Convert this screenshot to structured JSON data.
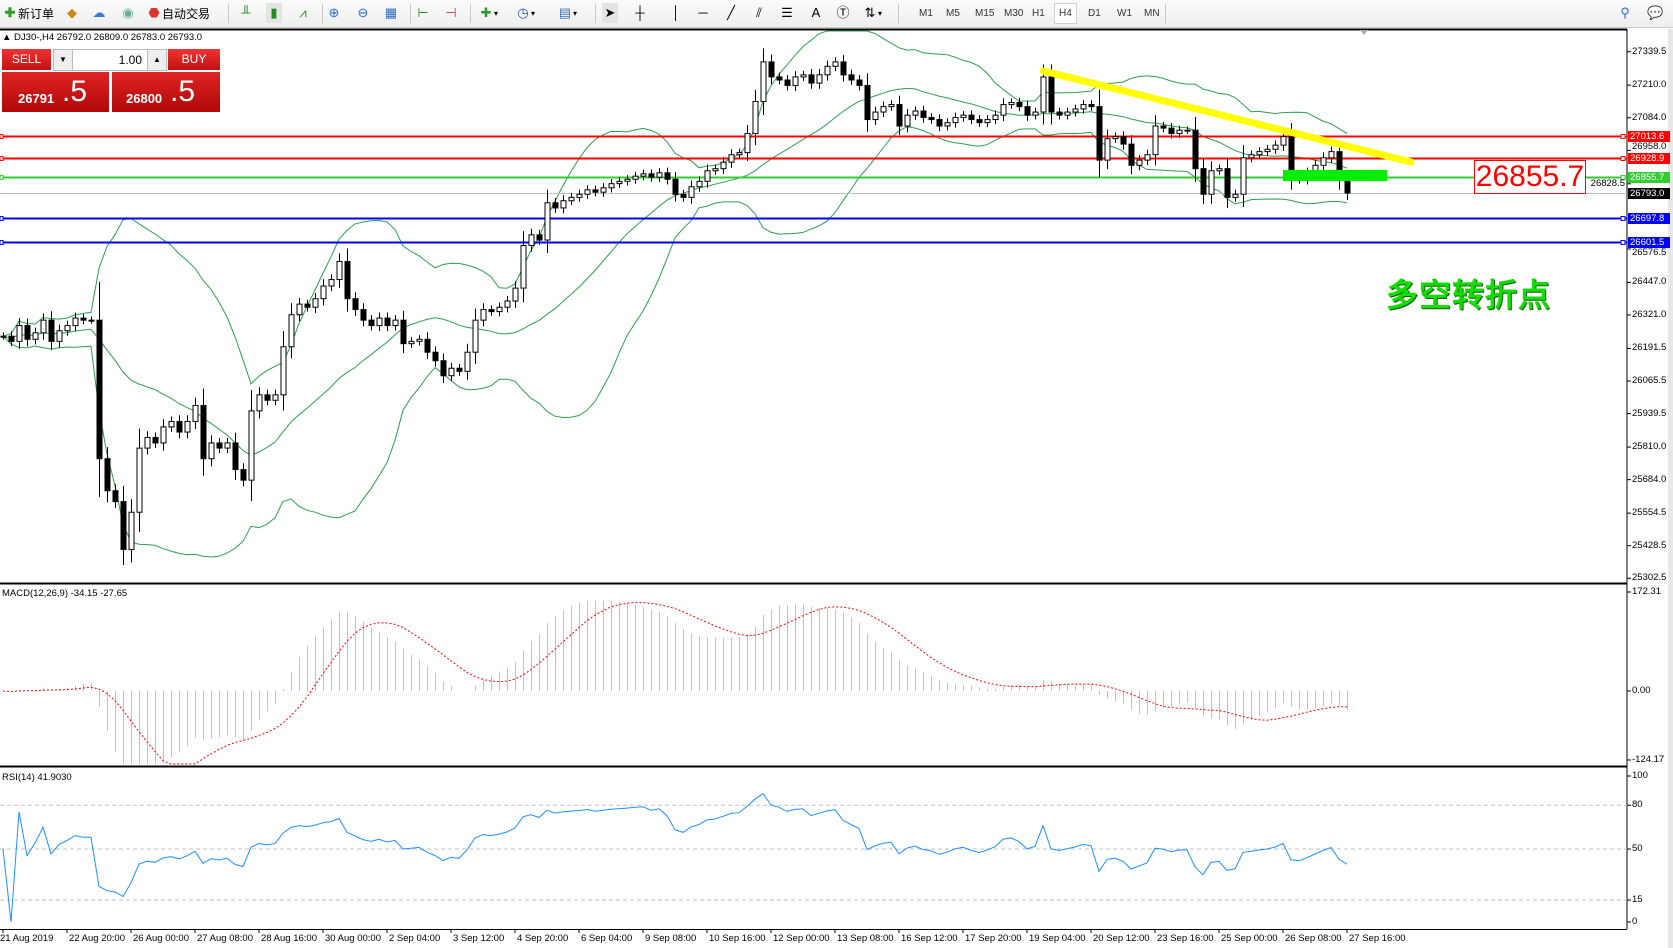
{
  "toolbar": {
    "new_order": "新订单",
    "auto_trading": "自动交易",
    "timeframes": [
      "M1",
      "M5",
      "M15",
      "M30",
      "H1",
      "H4",
      "D1",
      "W1",
      "MN"
    ],
    "active_timeframe": "H4"
  },
  "chart": {
    "symbol_info": "DJ30-,H4  26792.0 26809.0 26783.0 26793.0"
  },
  "trade_panel": {
    "sell_label": "SELL",
    "buy_label": "BUY",
    "lot": "1.00",
    "bid_main": "26791",
    "bid_frac": ".5",
    "ask_main": "26800",
    "ask_frac": ".5"
  },
  "annotations": {
    "price_label": "26855.7",
    "text": "多空转折点",
    "trendline": {
      "from": {
        "bar": 130,
        "price": 27265
      },
      "to": {
        "bar": 176,
        "price": 26913
      },
      "color": "#ffff00"
    },
    "zone": {
      "from_bar": 160,
      "to_bar": 173,
      "high": 26882,
      "low": 26839,
      "color": "#00ee00"
    }
  },
  "price_axis": [
    "27339.5",
    "27210.0",
    "27084.0",
    "26958.0",
    "26828.5",
    "26576.5",
    "26447.0",
    "26321.0",
    "26191.5",
    "26065.5",
    "25939.5",
    "25810.0",
    "25684.0",
    "25554.5",
    "25428.5",
    "25302.5"
  ],
  "levels": [
    {
      "label": "27013.6",
      "color": "#ff0000"
    },
    {
      "label": "26928.9",
      "color": "#ff0000"
    },
    {
      "label": "26855.7",
      "color": "#33cc33"
    },
    {
      "label": "26793.0",
      "color": "#000000",
      "line": "#c0c0c0"
    },
    {
      "label": "26697.8",
      "color": "#0000ff"
    },
    {
      "label": "26601.5",
      "color": "#0000ff"
    }
  ],
  "macd": {
    "label": "MACD(12,26,9) -34.15 -27.65",
    "axis": [
      "172.31",
      "0.00",
      "-124.17"
    ],
    "signal_color": "#ff0000",
    "hist_color": "#c0c0c0"
  },
  "rsi": {
    "label": "RSI(14) 41.9030",
    "axis": [
      "100",
      "80",
      "50",
      "15",
      "0"
    ],
    "color": "#1e90ff"
  },
  "time_axis": [
    "21 Aug 2019",
    "22 Aug 20:00",
    "26 Aug 00:00",
    "27 Aug 08:00",
    "28 Aug 16:00",
    "30 Aug 00:00",
    "2 Sep 04:00",
    "3 Sep 12:00",
    "4 Sep 20:00",
    "6 Sep 04:00",
    "9 Sep 08:00",
    "10 Sep 16:00",
    "12 Sep 00:00",
    "13 Sep 08:00",
    "16 Sep 12:00",
    "17 Sep 20:00",
    "19 Sep 04:00",
    "20 Sep 12:00",
    "23 Sep 16:00",
    "25 Sep 00:00",
    "26 Sep 08:00",
    "27 Sep 16:00"
  ],
  "chart_data": {
    "type": "candlestick",
    "symbol": "DJ30-",
    "timeframe": "H4",
    "ylim": [
      25302.5,
      27339.5
    ],
    "bollinger_color": "#2e9e4f",
    "close": [
      26239,
      26219,
      26280,
      26227,
      26252,
      26301,
      26219,
      26260,
      26280,
      26309,
      26301,
      26301,
      25765,
      25641,
      25599,
      25414,
      25558,
      25806,
      25847,
      25826,
      25888,
      25909,
      25868,
      25909,
      25971,
      25765,
      25826,
      25806,
      25826,
      25723,
      25682,
      25950,
      26012,
      25991,
      26012,
      26198,
      26322,
      26363,
      26351,
      26384,
      26433,
      26458,
      26528,
      26384,
      26342,
      26301,
      26280,
      26309,
      26280,
      26301,
      26210,
      26219,
      26227,
      26177,
      26144,
      26086,
      26115,
      26103,
      26177,
      26301,
      26342,
      26334,
      26351,
      26375,
      26425,
      26590,
      26631,
      26611,
      26755,
      26735,
      26763,
      26776,
      26788,
      26805,
      26796,
      26813,
      26829,
      26838,
      26846,
      26858,
      26867,
      26854,
      26871,
      26846,
      26788,
      26776,
      26817,
      26838,
      26879,
      26887,
      26912,
      26941,
      26949,
      27023,
      27147,
      27300,
      27242,
      27230,
      27209,
      27242,
      27250,
      27218,
      27250,
      27283,
      27300,
      27250,
      27230,
      27209,
      27077,
      27106,
      27127,
      27135,
      27052,
      27094,
      27110,
      27085,
      27077,
      27052,
      27065,
      27085,
      27094,
      27077,
      27065,
      27077,
      27094,
      27135,
      27143,
      27127,
      27094,
      27106,
      27242,
      27106,
      27094,
      27106,
      27118,
      27135,
      27127,
      26920,
      27003,
      27011,
      26982,
      26900,
      26920,
      26941,
      27052,
      27044,
      27023,
      27036,
      27036,
      26887,
      26788,
      26879,
      26887,
      26776,
      26788,
      26929,
      26941,
      26953,
      26962,
      26978,
      27011,
      26858,
      26846,
      26871,
      26900,
      26929,
      26953,
      26846,
      26793
    ]
  }
}
